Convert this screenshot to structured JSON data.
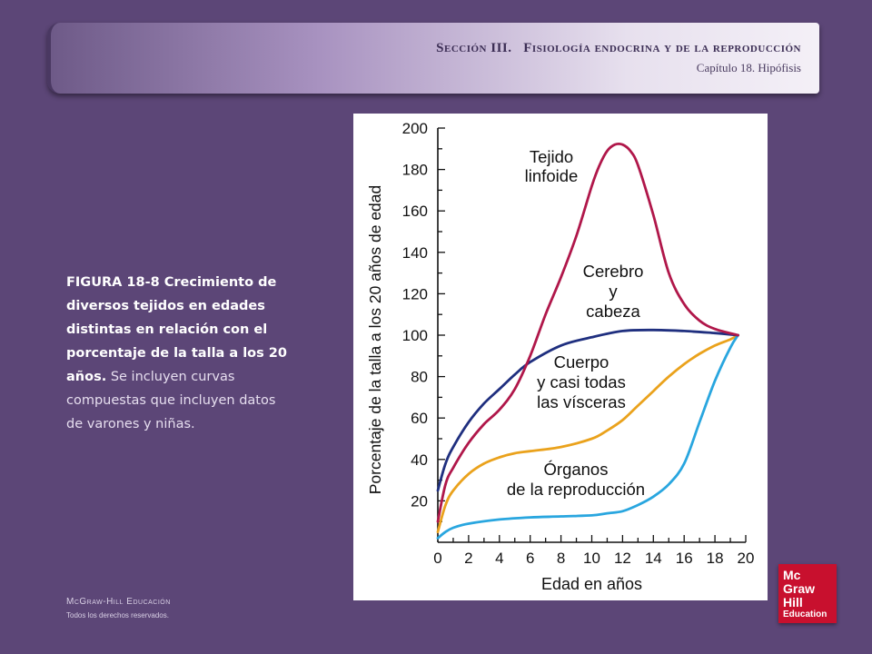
{
  "header": {
    "section": "Sección III.",
    "title": "Fisiología endocrina y de la reproducción",
    "subtitle": "Capítulo 18. Hipófisis"
  },
  "caption": {
    "bold": "FIGURA 18-8 Crecimiento de diversos tejidos en edades distintas en relación con el porcentaje de la talla a los 20 años.",
    "normal": " Se incluyen curvas compuestas que incluyen datos de varones y niñas."
  },
  "footer": {
    "brand": "McGraw-Hill Educación",
    "rights": "Todos los derechos reservados."
  },
  "logo": {
    "lines": [
      "Mc",
      "Graw",
      "Hill",
      "Education"
    ],
    "color": "#c8102e"
  },
  "chart_data": {
    "type": "line",
    "title": "",
    "xlabel": "Edad en años",
    "ylabel": "Porcentaje de la talla a los 20 años de edad",
    "xlim": [
      0,
      20
    ],
    "ylim": [
      0,
      200
    ],
    "xticks": [
      0,
      2,
      4,
      6,
      8,
      10,
      12,
      14,
      16,
      18,
      20
    ],
    "yticks": [
      20,
      40,
      60,
      80,
      100,
      120,
      140,
      160,
      180,
      200
    ],
    "grid": false,
    "series": [
      {
        "name": "Tejido linfoide",
        "label_lines": [
          "Tejido",
          "linfoide"
        ],
        "color": "#b0174a",
        "x": [
          0,
          0.5,
          1,
          2,
          3,
          4,
          5,
          6,
          7,
          8,
          9,
          10,
          10.5,
          11,
          11.5,
          12,
          12.5,
          13,
          14,
          15,
          16,
          17,
          18,
          19.5
        ],
        "y": [
          10,
          28,
          36,
          48,
          57,
          64,
          74,
          90,
          110,
          128,
          148,
          172,
          182,
          189,
          192,
          192,
          189,
          182,
          158,
          130,
          115,
          107,
          103,
          100
        ]
      },
      {
        "name": "Cerebro y cabeza",
        "label_lines": [
          "Cerebro",
          "y",
          "cabeza"
        ],
        "color": "#1f2f7f",
        "x": [
          0,
          0.5,
          1,
          2,
          3,
          4,
          5,
          6,
          8,
          10,
          12,
          14,
          16,
          18,
          19.5
        ],
        "y": [
          25,
          38,
          46,
          58,
          67,
          74,
          81,
          87,
          95,
          99,
          102,
          102.5,
          102,
          101,
          100
        ]
      },
      {
        "name": "Cuerpo y casi todas las vísceras",
        "label_lines": [
          "Cuerpo",
          "y casi todas",
          "las vísceras"
        ],
        "color": "#eaa21c",
        "x": [
          0,
          0.5,
          1,
          2,
          3,
          4,
          5,
          6,
          8,
          10,
          11,
          12,
          13,
          14,
          15,
          16,
          17,
          18,
          19,
          19.5
        ],
        "y": [
          5,
          18,
          25,
          33,
          38,
          41,
          43,
          44,
          46,
          50,
          54,
          59,
          66,
          73,
          80,
          86,
          91,
          95,
          98,
          100
        ]
      },
      {
        "name": "Órganos de la reproducción",
        "label_lines": [
          "Órganos",
          "de la reproducción"
        ],
        "color": "#29a6df",
        "x": [
          0,
          0.5,
          1,
          2,
          4,
          6,
          8,
          10,
          11,
          12,
          13,
          14,
          15,
          16,
          17,
          18,
          19,
          19.5
        ],
        "y": [
          2,
          5,
          7,
          9,
          11,
          12,
          12.5,
          13,
          14,
          15,
          18,
          22,
          28,
          38,
          58,
          78,
          94,
          100
        ]
      }
    ]
  }
}
